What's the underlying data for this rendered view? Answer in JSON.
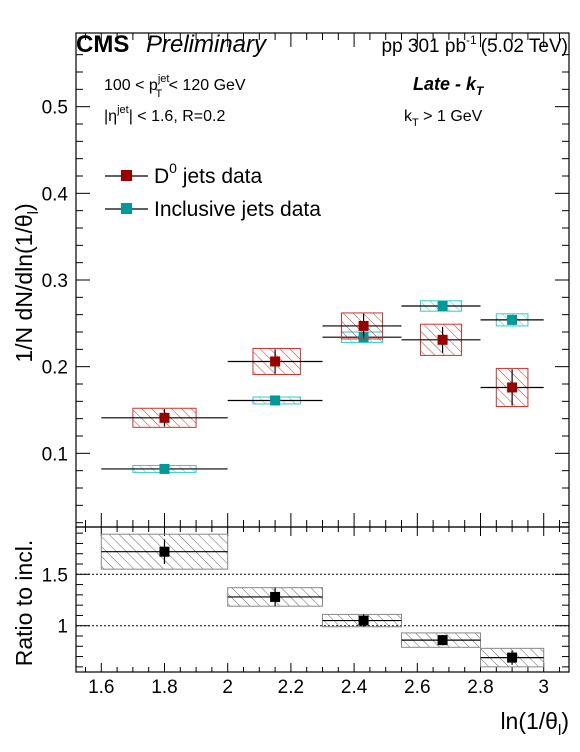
{
  "header": {
    "experiment": "CMS",
    "status": "Preliminary",
    "lumi_prefix": "pp 301 pb",
    "lumi_exp": "-1",
    "lumi_suffix": "(5.02 TeV)"
  },
  "annotations": {
    "pt_lo": "100 < p",
    "pt_sup": "jet",
    "pt_sub": "T",
    "pt_hi": " < 120 GeV",
    "eta_lo": "|η",
    "eta_sup": "jet",
    "eta_hi": "| < 1.6, R=0.2",
    "alg_text": "Late - k",
    "alg_sub": "T",
    "kt_lo": "k",
    "kt_sub": "T",
    "kt_hi": " > 1 GeV"
  },
  "colors": {
    "d0": "#990000",
    "d0_hatch": "#cc3333",
    "incl": "#009999",
    "incl_hatch": "#33cccc",
    "ratio": "#000000",
    "ratio_hatch": "#666666"
  },
  "chart_data": [
    {
      "type": "scatter",
      "panel": "main",
      "ylabel": "1/N dN/dln(1/θ",
      "ylabel_sub": "l",
      "ylabel_end": ")",
      "xlim": [
        1.52,
        3.08
      ],
      "ylim": [
        0.015,
        0.585
      ],
      "y_major_ticks": [
        0.1,
        0.2,
        0.3,
        0.4,
        0.5
      ],
      "y_tick_labels": [
        "0.1",
        "0.2",
        "0.3",
        "0.4",
        "0.5"
      ],
      "legend_position": "upper-left",
      "series": [
        {
          "name": "D",
          "name_sup": "0",
          "name_rest": " jets data",
          "color": "#990000",
          "points": [
            {
              "x": 1.8,
              "y": 0.141,
              "xlo": 1.6,
              "xhi": 2.0,
              "stat": 0.01,
              "sys": 0.011,
              "sys_xlo": 1.7,
              "sys_xhi": 1.9
            },
            {
              "x": 2.15,
              "y": 0.206,
              "xlo": 2.0,
              "xhi": 2.3,
              "stat": 0.014,
              "sys": 0.015,
              "sys_xlo": 2.08,
              "sys_xhi": 2.23
            },
            {
              "x": 2.43,
              "y": 0.247,
              "xlo": 2.3,
              "xhi": 2.55,
              "stat": 0.014,
              "sys": 0.015,
              "sys_xlo": 2.36,
              "sys_xhi": 2.49
            },
            {
              "x": 2.68,
              "y": 0.231,
              "xlo": 2.55,
              "xhi": 2.8,
              "stat": 0.015,
              "sys": 0.018,
              "sys_xlo": 2.61,
              "sys_xhi": 2.74
            },
            {
              "x": 2.9,
              "y": 0.176,
              "xlo": 2.8,
              "xhi": 3.0,
              "stat": 0.021,
              "sys": 0.022,
              "sys_xlo": 2.85,
              "sys_xhi": 2.95
            }
          ]
        },
        {
          "name": "Inclusive jets data",
          "color": "#009999",
          "points": [
            {
              "x": 1.8,
              "y": 0.082,
              "xlo": 1.6,
              "xhi": 2.0,
              "stat": 0.002,
              "sys": 0.004,
              "sys_xlo": 1.7,
              "sys_xhi": 1.9
            },
            {
              "x": 2.15,
              "y": 0.161,
              "xlo": 2.0,
              "xhi": 2.3,
              "stat": 0.002,
              "sys": 0.004,
              "sys_xlo": 2.08,
              "sys_xhi": 2.23
            },
            {
              "x": 2.43,
              "y": 0.234,
              "xlo": 2.3,
              "xhi": 2.55,
              "stat": 0.002,
              "sys": 0.006,
              "sys_xlo": 2.36,
              "sys_xhi": 2.49
            },
            {
              "x": 2.68,
              "y": 0.27,
              "xlo": 2.55,
              "xhi": 2.8,
              "stat": 0.002,
              "sys": 0.006,
              "sys_xlo": 2.61,
              "sys_xhi": 2.74
            },
            {
              "x": 2.9,
              "y": 0.254,
              "xlo": 2.8,
              "xhi": 3.0,
              "stat": 0.002,
              "sys": 0.007,
              "sys_xlo": 2.85,
              "sys_xhi": 2.95
            }
          ]
        }
      ]
    },
    {
      "type": "scatter",
      "panel": "ratio",
      "ylabel": "Ratio to incl.",
      "xlabel": "ln(1/θ",
      "xlabel_sub": "l",
      "xlabel_end": ")",
      "xlim": [
        1.52,
        3.08
      ],
      "ylim": [
        0.55,
        1.96
      ],
      "x_major_ticks": [
        1.6,
        1.8,
        2.0,
        2.2,
        2.4,
        2.6,
        2.8,
        3.0
      ],
      "x_tick_labels": [
        "1.6",
        "1.8",
        "2",
        "2.2",
        "2.4",
        "2.6",
        "2.8",
        "3"
      ],
      "y_major_ticks": [
        1.0,
        1.5
      ],
      "y_tick_labels": [
        "1",
        "1.5"
      ],
      "reference_lines": [
        1.0,
        1.5
      ],
      "series": [
        {
          "color": "#000000",
          "points": [
            {
              "x": 1.8,
              "y": 1.72,
              "xlo": 1.6,
              "xhi": 2.0,
              "stat": 0.12,
              "sys": 0.17,
              "sys_xlo": 1.6,
              "sys_xhi": 2.0
            },
            {
              "x": 2.15,
              "y": 1.28,
              "xlo": 2.0,
              "xhi": 2.3,
              "stat": 0.09,
              "sys": 0.09,
              "sys_xlo": 2.0,
              "sys_xhi": 2.3
            },
            {
              "x": 2.43,
              "y": 1.05,
              "xlo": 2.3,
              "xhi": 2.55,
              "stat": 0.06,
              "sys": 0.06,
              "sys_xlo": 2.3,
              "sys_xhi": 2.55
            },
            {
              "x": 2.68,
              "y": 0.86,
              "xlo": 2.55,
              "xhi": 2.8,
              "stat": 0.05,
              "sys": 0.07,
              "sys_xlo": 2.55,
              "sys_xhi": 2.8
            },
            {
              "x": 2.9,
              "y": 0.69,
              "xlo": 2.8,
              "xhi": 3.0,
              "stat": 0.07,
              "sys": 0.09,
              "sys_xlo": 2.8,
              "sys_xhi": 3.0
            }
          ]
        }
      ]
    }
  ]
}
